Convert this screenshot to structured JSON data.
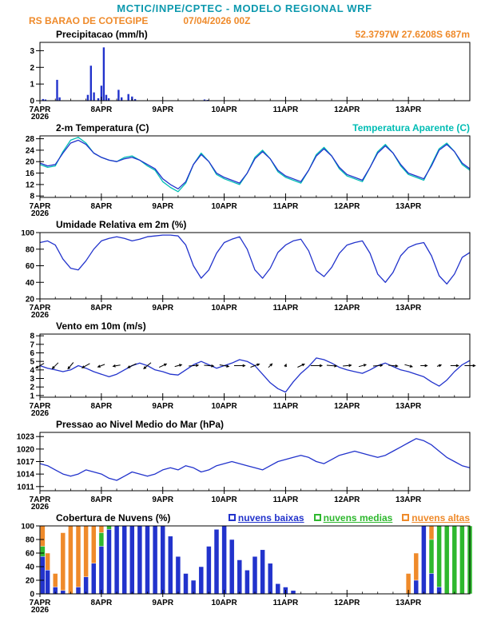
{
  "header": {
    "title": "MCTIC/INPE/CPTEC - MODELO REGIONAL WRF",
    "station": "RS BARAO DE COTEGIPE",
    "run": "07/04/2026 00Z",
    "coords": "52.3797W 27.6208S 687m"
  },
  "colors": {
    "teal": "#0d99ae",
    "orange": "#ef8a2a",
    "blue": "#2233cc",
    "cyan": "#00bdb4",
    "green": "#2eb82e",
    "black": "#000000"
  },
  "x_axis": {
    "labels": [
      "7APR",
      "8APR",
      "9APR",
      "10APR",
      "11APR",
      "12APR",
      "13APR"
    ],
    "year": "2026",
    "span_days": 7
  },
  "chart_data": [
    {
      "id": "precip",
      "type": "bar",
      "title": "Precipitacao (mm/h)",
      "ylim": [
        0,
        3.5
      ],
      "yticks": [
        0,
        1,
        2,
        3
      ],
      "series": [
        {
          "name": "precipitacao",
          "color_key": "blue",
          "points": [
            [
              0.05,
              0.1
            ],
            [
              0.09,
              0.07
            ],
            [
              0.28,
              1.25
            ],
            [
              0.32,
              0.2
            ],
            [
              0.78,
              0.35
            ],
            [
              0.83,
              2.1
            ],
            [
              0.88,
              0.5
            ],
            [
              0.95,
              0.15
            ],
            [
              1.0,
              0.9
            ],
            [
              1.04,
              3.2
            ],
            [
              1.08,
              0.35
            ],
            [
              1.12,
              0.15
            ],
            [
              1.28,
              0.65
            ],
            [
              1.33,
              0.2
            ],
            [
              1.44,
              0.4
            ],
            [
              1.5,
              0.25
            ],
            [
              1.55,
              0.1
            ],
            [
              2.68,
              0.07
            ],
            [
              2.73,
              0.05
            ]
          ]
        }
      ]
    },
    {
      "id": "temp2m",
      "type": "line",
      "title": "2-m Temperatura (C)",
      "right_label": "Temperatura Aparente (C)",
      "ylim": [
        7.5,
        29
      ],
      "yticks": [
        8,
        12,
        16,
        20,
        24,
        28
      ],
      "dt_days": 0.125,
      "series": [
        {
          "name": "temperatura-aparente",
          "color_key": "cyan",
          "values": [
            19,
            18,
            18.5,
            23.5,
            27.5,
            28.5,
            26.5,
            23,
            21.5,
            20.5,
            20,
            21.5,
            22,
            20.5,
            18.5,
            17,
            13,
            11,
            9.5,
            12.5,
            19,
            23,
            20,
            15.5,
            14,
            13,
            12,
            16,
            21.5,
            24,
            21,
            16.5,
            14.5,
            13.5,
            12.5,
            17,
            22.5,
            25,
            22,
            17.5,
            15,
            14,
            13,
            18,
            23.5,
            26,
            23,
            18.5,
            15.5,
            14.5,
            13.5,
            19,
            24.5,
            26.5,
            23.5,
            19,
            17
          ]
        },
        {
          "name": "temperatura-2m",
          "color_key": "blue",
          "values": [
            19.5,
            18.5,
            19,
            23,
            26.5,
            27.5,
            26,
            23,
            21.5,
            20.5,
            20,
            21,
            21.5,
            20.5,
            19,
            17.5,
            14,
            12,
            10.5,
            13,
            19,
            22.5,
            20,
            16,
            14.5,
            13.5,
            12.5,
            16,
            21,
            23.5,
            21,
            17,
            15,
            14,
            13,
            17,
            22,
            24.5,
            22,
            18,
            15.5,
            14.5,
            13.5,
            18,
            23,
            25.5,
            23,
            19,
            16,
            15,
            14,
            18.5,
            24,
            26,
            23.5,
            19.5,
            17.5
          ]
        }
      ]
    },
    {
      "id": "rh2m",
      "type": "line",
      "title": "Umidade Relativa em 2m (%)",
      "ylim": [
        20,
        100
      ],
      "yticks": [
        20,
        40,
        60,
        80,
        100
      ],
      "dt_days": 0.125,
      "series": [
        {
          "name": "umidade-relativa",
          "color_key": "blue",
          "values": [
            88,
            90,
            85,
            68,
            57,
            55,
            66,
            80,
            90,
            93,
            95,
            93,
            90,
            92,
            95,
            96,
            97,
            97,
            96,
            85,
            60,
            45,
            55,
            75,
            88,
            92,
            95,
            80,
            55,
            45,
            57,
            76,
            85,
            90,
            92,
            78,
            54,
            47,
            58,
            75,
            85,
            88,
            90,
            75,
            50,
            40,
            52,
            72,
            82,
            86,
            88,
            72,
            48,
            38,
            50,
            70,
            76
          ]
        }
      ]
    },
    {
      "id": "wind10m",
      "type": "line",
      "title": "Vento em 10m (m/s)",
      "ylim": [
        0.8,
        8.2
      ],
      "yticks": [
        1,
        2,
        3,
        4,
        5,
        6,
        7,
        8
      ],
      "dt_days": 0.125,
      "series": [
        {
          "name": "velocidade-vento",
          "color_key": "blue",
          "values": [
            4.5,
            4.2,
            4,
            3.8,
            4,
            4.5,
            4.2,
            3.8,
            3.5,
            3.2,
            3.5,
            4,
            4.5,
            4.8,
            4.5,
            4,
            3.8,
            3.5,
            3.4,
            4,
            4.6,
            5,
            4.6,
            4.2,
            4.5,
            4.8,
            5.2,
            5,
            4.5,
            3.5,
            2.5,
            1.8,
            1.4,
            2.6,
            3.6,
            4.4,
            5.4,
            5.2,
            4.8,
            4.3,
            4,
            3.8,
            3.6,
            4,
            4.5,
            4.8,
            4.4,
            4,
            3.8,
            3.5,
            3.2,
            2.6,
            2.1,
            2.8,
            3.8,
            4.6,
            5.1
          ]
        }
      ],
      "vectors": {
        "y_anchor": 4.5,
        "scale": 2.6,
        "directions_deg": [
          210,
          215,
          225,
          235,
          230,
          220,
          210,
          205,
          200,
          195,
          190,
          195,
          205,
          215,
          220,
          215,
          25,
          20,
          15,
          10,
          5,
          0,
          -5,
          -10,
          -10,
          -5,
          0,
          10,
          20,
          30,
          45,
          60,
          70,
          50,
          25,
          10,
          0,
          -10,
          -5,
          0,
          5,
          10,
          15,
          10,
          5,
          0,
          -5,
          -10,
          -15,
          -10,
          0,
          10,
          20,
          10,
          0,
          -5,
          0
        ]
      }
    },
    {
      "id": "slp",
      "type": "line",
      "title": "Pressao ao Nivel Medio do Mar (hPa)",
      "ylim": [
        1010,
        1024
      ],
      "yticks": [
        1011,
        1014,
        1017,
        1020,
        1023
      ],
      "dt_days": 0.125,
      "series": [
        {
          "name": "pressao-nivel-mar",
          "color_key": "blue",
          "values": [
            1016.5,
            1016,
            1015,
            1014,
            1013.5,
            1014,
            1015,
            1014.5,
            1014,
            1013,
            1012.5,
            1013.5,
            1014.5,
            1014,
            1013.5,
            1014,
            1015,
            1015.5,
            1015,
            1016,
            1015.5,
            1014.5,
            1015,
            1016,
            1016.5,
            1017,
            1016.5,
            1016,
            1015.5,
            1015,
            1016,
            1017,
            1017.5,
            1018,
            1018.5,
            1018,
            1017,
            1016.5,
            1017.5,
            1018.5,
            1019,
            1019.5,
            1019,
            1018.5,
            1018,
            1018.5,
            1019.5,
            1020.5,
            1021.5,
            1022.5,
            1022,
            1021,
            1019.5,
            1018,
            1017,
            1016,
            1015.5
          ]
        }
      ]
    },
    {
      "id": "clouds",
      "type": "bar-multi",
      "title": "Cobertura de Nuvens (%)",
      "ylim": [
        0,
        100
      ],
      "yticks": [
        0,
        20,
        40,
        60,
        80,
        100
      ],
      "dt_days": 0.125,
      "legend": [
        {
          "label": "nuvens baixas",
          "color_key": "blue"
        },
        {
          "label": "nuvens medias",
          "color_key": "green"
        },
        {
          "label": "nuvens altas",
          "color_key": "orange"
        }
      ],
      "series": [
        {
          "name": "nuvens-altas",
          "color_key": "orange",
          "values": [
            100,
            60,
            30,
            90,
            100,
            100,
            100,
            100,
            100,
            80,
            20,
            0,
            0,
            0,
            0,
            0,
            0,
            0,
            0,
            0,
            0,
            0,
            0,
            0,
            0,
            0,
            0,
            0,
            0,
            0,
            0,
            0,
            0,
            0,
            0,
            0,
            0,
            0,
            0,
            0,
            0,
            0,
            0,
            0,
            0,
            0,
            0,
            0,
            30,
            60,
            90,
            100,
            60,
            40,
            30,
            20,
            10
          ]
        },
        {
          "name": "nuvens-medias",
          "color_key": "green",
          "values": [
            70,
            0,
            0,
            0,
            0,
            0,
            10,
            40,
            90,
            100,
            60,
            10,
            0,
            0,
            0,
            0,
            0,
            0,
            0,
            0,
            0,
            0,
            0,
            0,
            0,
            0,
            0,
            0,
            0,
            0,
            0,
            0,
            0,
            0,
            0,
            0,
            0,
            0,
            0,
            0,
            0,
            0,
            0,
            0,
            0,
            0,
            0,
            0,
            0,
            0,
            40,
            80,
            100,
            100,
            100,
            100,
            100
          ]
        },
        {
          "name": "nuvens-baixas",
          "color_key": "blue",
          "values": [
            55,
            35,
            10,
            5,
            0,
            10,
            25,
            45,
            70,
            95,
            100,
            100,
            100,
            100,
            100,
            100,
            100,
            85,
            55,
            30,
            20,
            40,
            70,
            95,
            100,
            80,
            50,
            35,
            55,
            65,
            45,
            15,
            10,
            5,
            0,
            0,
            0,
            0,
            0,
            0,
            0,
            0,
            0,
            0,
            0,
            0,
            0,
            0,
            0,
            20,
            100,
            30,
            10,
            0,
            0,
            0,
            0
          ]
        }
      ]
    }
  ]
}
